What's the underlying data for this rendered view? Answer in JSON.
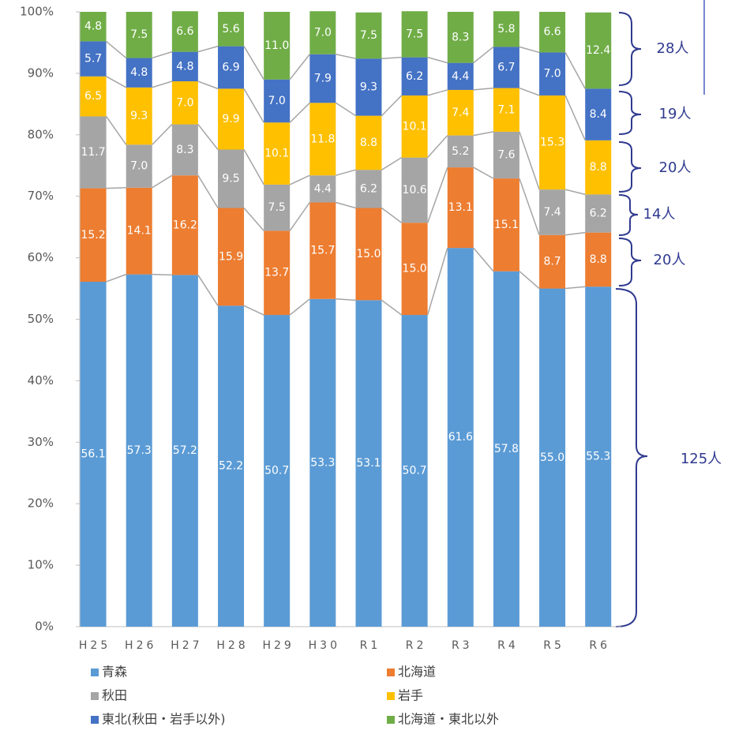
{
  "chart_data": {
    "type": "stacked_bar",
    "categories": [
      "H25",
      "H26",
      "H27",
      "H28",
      "H29",
      "H30",
      "R1",
      "R2",
      "R3",
      "R4",
      "R5",
      "R6"
    ],
    "series": [
      {
        "name": "青森",
        "color": "#5b9bd5",
        "values": [
          56.1,
          57.3,
          57.2,
          52.2,
          50.7,
          53.3,
          53.1,
          50.7,
          61.6,
          57.8,
          55.0,
          55.3
        ],
        "value_labels": [
          "56.1",
          "57.3",
          "57.2",
          "52.2",
          "50.7",
          "53.3",
          "53.1",
          "50.7",
          "61.6",
          "57.8",
          "55.0",
          "55.3"
        ]
      },
      {
        "name": "北海道",
        "color": "#ed7d31",
        "values": [
          15.2,
          14.1,
          16.2,
          15.9,
          13.7,
          15.7,
          15.0,
          15.0,
          13.1,
          15.1,
          8.7,
          8.8
        ],
        "value_labels": [
          "15.2",
          "14.1",
          "16.2",
          "15.9",
          "13.7",
          "15.7",
          "15.0",
          "15.0",
          "13.1",
          "15.1",
          "8.7",
          "8.8"
        ]
      },
      {
        "name": "秋田",
        "color": "#a5a5a5",
        "values": [
          11.7,
          7.0,
          8.3,
          9.5,
          7.5,
          4.4,
          6.2,
          10.6,
          5.2,
          7.6,
          7.4,
          6.2
        ],
        "value_labels": [
          "11.7",
          "7.0",
          "8.3",
          "9.5",
          "7.5",
          "4.4",
          "6.2",
          "10.6",
          "5.2",
          "7.6",
          "7.4",
          "6.2"
        ]
      },
      {
        "name": "岩手",
        "color": "#ffc000",
        "values": [
          6.5,
          9.3,
          7.0,
          9.9,
          10.1,
          11.8,
          8.8,
          10.1,
          7.4,
          7.1,
          15.3,
          8.8
        ],
        "value_labels": [
          "6.5",
          "9.3",
          "7.0",
          "9.9",
          "10.1",
          "11.8",
          "8.8",
          "10.1",
          "7.4",
          "7.1",
          "15.3",
          "8.8"
        ]
      },
      {
        "name": "東北(秋田・岩手以外)",
        "color": "#4472c4",
        "values": [
          5.7,
          4.8,
          4.8,
          6.9,
          7.0,
          7.9,
          9.3,
          6.2,
          4.4,
          6.7,
          7.0,
          8.4
        ],
        "value_labels": [
          "5.7",
          "4.8",
          "4.8",
          "6.9",
          "7.0",
          "7.9",
          "9.3",
          "6.2",
          "4.4",
          "6.7",
          "7.0",
          "8.4"
        ]
      },
      {
        "name": "北海道・東北以外",
        "color": "#70ad47",
        "values": [
          4.8,
          7.5,
          6.6,
          5.6,
          11.0,
          7.0,
          7.5,
          7.5,
          8.3,
          5.8,
          6.6,
          12.4
        ],
        "value_labels": [
          "4.8",
          "7.5",
          "6.6",
          "5.6",
          "11.0",
          "7.0",
          "7.5",
          "7.5",
          "8.3",
          "5.8",
          "6.6",
          "12.4"
        ]
      }
    ],
    "ylim": [
      0,
      100
    ],
    "yticks": [
      {
        "value": 0,
        "label": "0%"
      },
      {
        "value": 10,
        "label": "10%"
      },
      {
        "value": 20,
        "label": "20%"
      },
      {
        "value": 30,
        "label": "30%"
      },
      {
        "value": 40,
        "label": "40%"
      },
      {
        "value": 50,
        "label": "50%"
      },
      {
        "value": 60,
        "label": "60%"
      },
      {
        "value": 70,
        "label": "70%"
      },
      {
        "value": 80,
        "label": "80%"
      },
      {
        "value": 90,
        "label": "90%"
      },
      {
        "value": 100,
        "label": "100%"
      }
    ],
    "annotations": [
      "28人",
      "19人",
      "20人",
      "14人",
      "20人",
      "125人"
    ],
    "legend": "bottom"
  }
}
